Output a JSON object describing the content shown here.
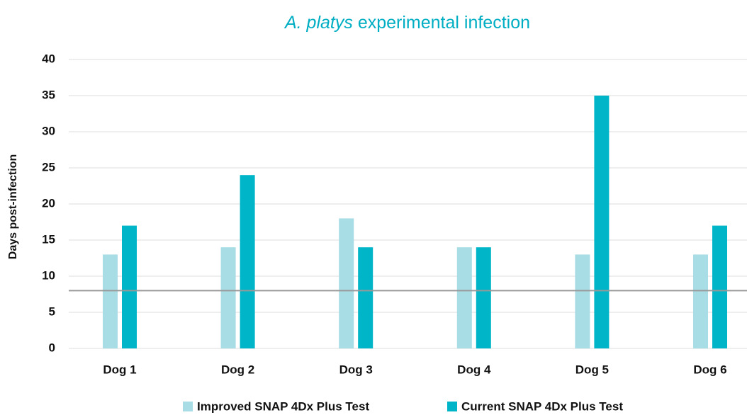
{
  "chart_data": {
    "type": "bar",
    "title": {
      "italic": "A. platys",
      "text": "experimental infection"
    },
    "y_label": "Days post-infection",
    "categories": [
      "Dog 1",
      "Dog 2",
      "Dog 3",
      "Dog 4",
      "Dog 5",
      "Dog 6"
    ],
    "series": [
      {
        "name": "Improved SNAP 4Dx Plus Test",
        "color": "#a8dde6",
        "values": [
          13,
          14,
          18,
          14,
          13,
          13
        ]
      },
      {
        "name": "Current SNAP 4Dx Plus Test",
        "color": "#00b5c8",
        "values": [
          17,
          24,
          14,
          14,
          35,
          17
        ]
      }
    ],
    "ylim": [
      0,
      40
    ],
    "yticks": [
      0,
      5,
      10,
      15,
      20,
      25,
      30,
      35,
      40
    ],
    "grid": true,
    "reference_line": {
      "value": 8,
      "color": "#999999"
    },
    "legend": "bottom"
  }
}
